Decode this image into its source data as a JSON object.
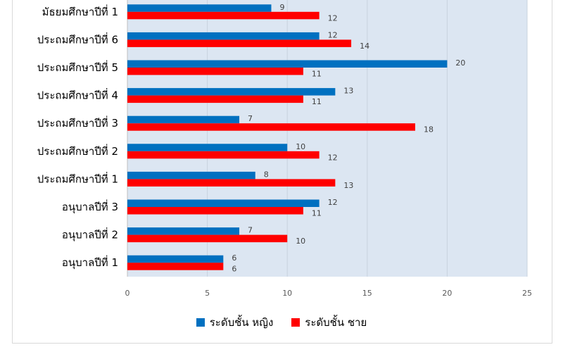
{
  "chart_data": {
    "type": "bar",
    "orientation": "horizontal",
    "categories": [
      "มัธยมศึกษาปีที่ 1",
      "ประถมศึกษาปีที่ 6",
      "ประถมศึกษาปีที่ 5",
      "ประถมศึกษาปีที่ 4",
      "ประถมศึกษาปีที่ 3",
      "ประถมศึกษาปีที่ 2",
      "ประถมศึกษาปีที่ 1",
      "อนุบาลปีที่ 3",
      "อนุบาลปีที่ 2",
      "อนุบาลปีที่ 1"
    ],
    "series": [
      {
        "name": "ระดับชั้น หญิง",
        "color": "#0070c0",
        "values": [
          9,
          12,
          20,
          13,
          7,
          10,
          8,
          12,
          7,
          6
        ]
      },
      {
        "name": "ระดับชั้น ชาย",
        "color": "#ff0000",
        "values": [
          12,
          14,
          11,
          11,
          18,
          12,
          13,
          11,
          10,
          6
        ]
      }
    ],
    "xlim": [
      0,
      25
    ],
    "x_ticks": [
      0,
      5,
      10,
      15,
      20,
      25
    ],
    "grid": true,
    "legend_position": "bottom",
    "plot_background": "#dce6f2"
  }
}
